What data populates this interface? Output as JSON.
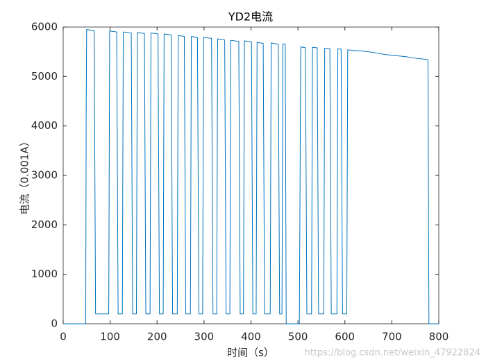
{
  "chart_data": {
    "type": "line",
    "title": "YD2电流",
    "x_label": "时间（s）",
    "y_label": "电流（0.001A）",
    "watermark": "https://blog.csdn.net/weixin_47922824",
    "xlim": [
      0,
      800
    ],
    "xticks": [
      0,
      100,
      200,
      300,
      400,
      500,
      600,
      700,
      800
    ],
    "ylim": [
      0,
      6000
    ],
    "yticks": [
      0,
      1000,
      2000,
      3000,
      4000,
      5000,
      6000
    ],
    "grid": false,
    "series": [
      {
        "name": "YD2",
        "color": "#0072BD",
        "x": [
          0,
          48,
          49,
          50,
          66,
          69,
          97,
          99,
          114,
          117,
          126,
          128,
          145,
          148,
          156,
          158,
          173,
          176,
          185,
          187,
          202,
          205,
          213,
          215,
          230,
          233,
          243,
          245,
          258,
          261,
          271,
          273,
          286,
          289,
          297,
          299,
          316,
          319,
          327,
          329,
          344,
          347,
          355,
          357,
          374,
          377,
          384,
          386,
          401,
          404,
          411,
          413,
          426,
          429,
          441,
          443,
          458,
          461,
          466,
          468,
          473,
          475,
          503,
          506,
          516,
          519,
          529,
          531,
          541,
          544,
          555,
          557,
          568,
          571,
          583,
          585,
          592,
          595,
          604,
          606,
          614,
          630,
          650,
          670,
          690,
          710,
          730,
          750,
          770,
          777,
          779,
          800
        ],
        "values": [
          0,
          0,
          4300,
          5950,
          5930,
          200,
          200,
          5920,
          5900,
          200,
          200,
          5900,
          5880,
          200,
          200,
          5890,
          5870,
          200,
          200,
          5880,
          5860,
          200,
          200,
          5860,
          5840,
          200,
          200,
          5830,
          5810,
          200,
          200,
          5810,
          5790,
          200,
          200,
          5790,
          5770,
          200,
          200,
          5760,
          5740,
          200,
          200,
          5730,
          5710,
          200,
          200,
          5720,
          5700,
          200,
          200,
          5690,
          5670,
          200,
          200,
          5680,
          5650,
          200,
          200,
          5660,
          5650,
          0,
          0,
          5600,
          5580,
          200,
          200,
          5590,
          5580,
          200,
          200,
          5570,
          5560,
          200,
          200,
          5560,
          5550,
          200,
          200,
          5540,
          5530,
          5520,
          5500,
          5470,
          5440,
          5420,
          5400,
          5370,
          5350,
          5340,
          0,
          0
        ]
      }
    ]
  }
}
